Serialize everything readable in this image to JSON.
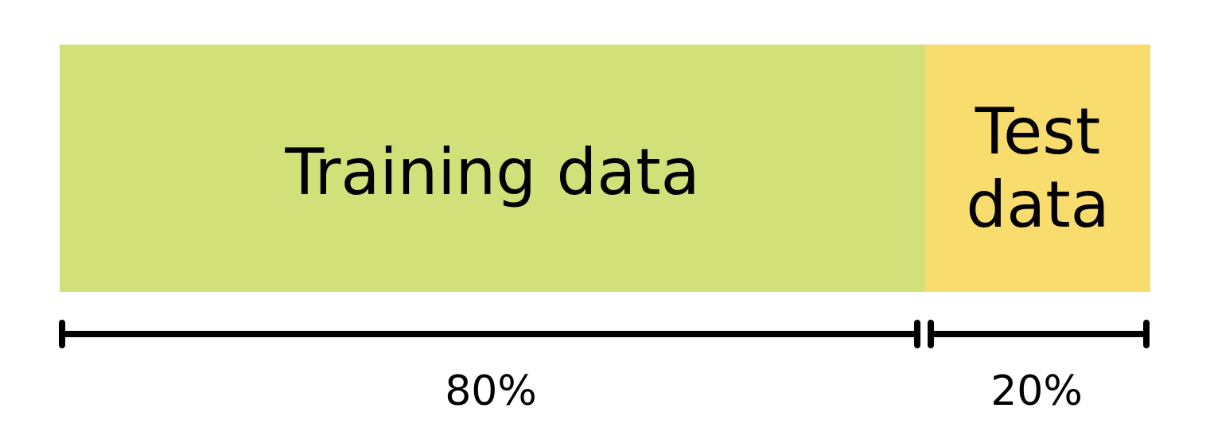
{
  "segments": [
    {
      "label": "Training data",
      "percent_label": "80%",
      "share": 0.8,
      "color": "#d1e079"
    },
    {
      "label": "Test data",
      "percent_label": "20%",
      "share": 0.2,
      "color": "#f8dc6d"
    }
  ]
}
